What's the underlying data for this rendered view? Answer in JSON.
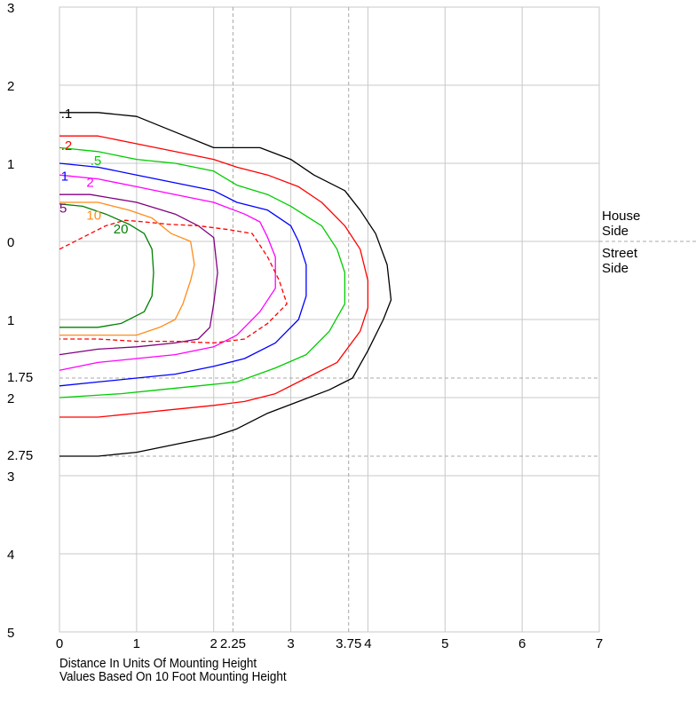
{
  "chart_data": {
    "type": "isofootcandle",
    "xlabel": "Distance In Units Of Mounting Height",
    "note": "Values Based On 10 Foot Mounting Height",
    "x_ticks": [
      "0",
      "1",
      "2",
      "3",
      "4",
      "5",
      "6",
      "7"
    ],
    "x_ref_ticks": [
      "2.25",
      "3.75"
    ],
    "x_ref_values": [
      2.25,
      3.75
    ],
    "y_ticks_upper": [
      "3",
      "2",
      "1",
      "0"
    ],
    "y_ticks_lower": [
      "1",
      "2",
      "3",
      "4",
      "5"
    ],
    "y_ref_ticks": [
      "1.75",
      "2.75"
    ],
    "y_ref_values": [
      -1.75,
      -2.75
    ],
    "xlim": [
      0,
      7
    ],
    "ylim": [
      -5,
      3
    ],
    "side_labels": {
      "house": "House",
      "house2": "Side",
      "street": "Street",
      "street2": "Side"
    },
    "grid": true,
    "contours": [
      {
        "label": ".1",
        "color": "#000000",
        "dashed": false,
        "label_at": [
          0.02,
          1.58
        ],
        "points": [
          [
            0,
            1.65
          ],
          [
            0.5,
            1.65
          ],
          [
            1,
            1.6
          ],
          [
            1.5,
            1.4
          ],
          [
            2,
            1.2
          ],
          [
            2.3,
            1.2
          ],
          [
            2.6,
            1.2
          ],
          [
            3,
            1.05
          ],
          [
            3.3,
            0.85
          ],
          [
            3.7,
            0.65
          ],
          [
            3.9,
            0.4
          ],
          [
            4.1,
            0.1
          ],
          [
            4.25,
            -0.3
          ],
          [
            4.3,
            -0.75
          ],
          [
            4.2,
            -1.0
          ],
          [
            4.0,
            -1.4
          ],
          [
            3.8,
            -1.75
          ],
          [
            3.5,
            -1.9
          ],
          [
            3.1,
            -2.05
          ],
          [
            2.7,
            -2.2
          ],
          [
            2.3,
            -2.4
          ],
          [
            2.0,
            -2.5
          ],
          [
            1.5,
            -2.6
          ],
          [
            1.0,
            -2.7
          ],
          [
            0.5,
            -2.75
          ],
          [
            0,
            -2.75
          ]
        ]
      },
      {
        "label": ".2",
        "color": "#ff0000",
        "dashed": false,
        "label_at": [
          0.02,
          1.17
        ],
        "points": [
          [
            0,
            1.35
          ],
          [
            0.5,
            1.35
          ],
          [
            1,
            1.25
          ],
          [
            1.5,
            1.15
          ],
          [
            2,
            1.05
          ],
          [
            2.3,
            0.95
          ],
          [
            2.7,
            0.85
          ],
          [
            3.1,
            0.7
          ],
          [
            3.4,
            0.5
          ],
          [
            3.7,
            0.2
          ],
          [
            3.9,
            -0.1
          ],
          [
            4.0,
            -0.5
          ],
          [
            4.0,
            -0.85
          ],
          [
            3.9,
            -1.15
          ],
          [
            3.6,
            -1.55
          ],
          [
            3.2,
            -1.75
          ],
          [
            2.8,
            -1.95
          ],
          [
            2.4,
            -2.05
          ],
          [
            2.0,
            -2.1
          ],
          [
            1.5,
            -2.15
          ],
          [
            1.0,
            -2.2
          ],
          [
            0.5,
            -2.25
          ],
          [
            0,
            -2.25
          ]
        ]
      },
      {
        "label": ".5",
        "color": "#00cc00",
        "dashed": false,
        "label_at": [
          0.4,
          0.98
        ],
        "points": [
          [
            0,
            1.2
          ],
          [
            0.5,
            1.15
          ],
          [
            1,
            1.05
          ],
          [
            1.5,
            1.0
          ],
          [
            2,
            0.9
          ],
          [
            2.3,
            0.72
          ],
          [
            2.7,
            0.6
          ],
          [
            3.0,
            0.45
          ],
          [
            3.4,
            0.2
          ],
          [
            3.6,
            -0.1
          ],
          [
            3.7,
            -0.4
          ],
          [
            3.7,
            -0.8
          ],
          [
            3.5,
            -1.15
          ],
          [
            3.2,
            -1.45
          ],
          [
            2.8,
            -1.62
          ],
          [
            2.3,
            -1.8
          ],
          [
            1.8,
            -1.85
          ],
          [
            1.3,
            -1.9
          ],
          [
            0.8,
            -1.95
          ],
          [
            0,
            -2.0
          ]
        ]
      },
      {
        "label": "1",
        "color": "#0000ff",
        "dashed": false,
        "label_at": [
          0.02,
          0.78
        ],
        "points": [
          [
            0,
            1.0
          ],
          [
            0.5,
            0.95
          ],
          [
            1,
            0.85
          ],
          [
            1.5,
            0.75
          ],
          [
            2,
            0.65
          ],
          [
            2.3,
            0.5
          ],
          [
            2.7,
            0.4
          ],
          [
            3.0,
            0.2
          ],
          [
            3.1,
            0.0
          ],
          [
            3.2,
            -0.3
          ],
          [
            3.2,
            -0.7
          ],
          [
            3.1,
            -1.0
          ],
          [
            2.8,
            -1.3
          ],
          [
            2.4,
            -1.5
          ],
          [
            2.0,
            -1.6
          ],
          [
            1.5,
            -1.7
          ],
          [
            1.0,
            -1.75
          ],
          [
            0.5,
            -1.8
          ],
          [
            0,
            -1.85
          ]
        ]
      },
      {
        "label": "2",
        "color": "#ff00ff",
        "dashed": false,
        "label_at": [
          0.35,
          0.7
        ],
        "points": [
          [
            0,
            0.85
          ],
          [
            0.5,
            0.8
          ],
          [
            1,
            0.7
          ],
          [
            1.5,
            0.6
          ],
          [
            2,
            0.5
          ],
          [
            2.4,
            0.35
          ],
          [
            2.6,
            0.25
          ],
          [
            2.7,
            0.05
          ],
          [
            2.8,
            -0.2
          ],
          [
            2.8,
            -0.6
          ],
          [
            2.6,
            -0.9
          ],
          [
            2.3,
            -1.2
          ],
          [
            2.0,
            -1.35
          ],
          [
            1.5,
            -1.45
          ],
          [
            1.0,
            -1.5
          ],
          [
            0.5,
            -1.55
          ],
          [
            0,
            -1.65
          ]
        ]
      },
      {
        "label": "5",
        "color": "#800080",
        "dashed": false,
        "label_at": [
          0.0,
          0.37
        ],
        "points": [
          [
            0,
            0.6
          ],
          [
            0.4,
            0.6
          ],
          [
            1,
            0.5
          ],
          [
            1.5,
            0.35
          ],
          [
            1.8,
            0.2
          ],
          [
            2.0,
            0.05
          ],
          [
            2.05,
            -0.4
          ],
          [
            2.0,
            -0.8
          ],
          [
            1.95,
            -1.1
          ],
          [
            1.8,
            -1.25
          ],
          [
            1.5,
            -1.3
          ],
          [
            1.0,
            -1.35
          ],
          [
            0.5,
            -1.38
          ],
          [
            0,
            -1.45
          ]
        ]
      },
      {
        "label": "10",
        "color": "#ff8c1a",
        "dashed": false,
        "label_at": [
          0.35,
          0.28
        ],
        "points": [
          [
            0,
            0.5
          ],
          [
            0.5,
            0.5
          ],
          [
            0.9,
            0.4
          ],
          [
            1.2,
            0.3
          ],
          [
            1.45,
            0.1
          ],
          [
            1.7,
            0.0
          ],
          [
            1.75,
            -0.3
          ],
          [
            1.7,
            -0.5
          ],
          [
            1.6,
            -0.8
          ],
          [
            1.5,
            -1.0
          ],
          [
            1.3,
            -1.1
          ],
          [
            1.0,
            -1.2
          ],
          [
            0.5,
            -1.2
          ],
          [
            0,
            -1.2
          ]
        ]
      },
      {
        "label": "20",
        "color": "#008000",
        "dashed": false,
        "label_at": [
          0.7,
          0.1
        ],
        "points": [
          [
            0,
            0.48
          ],
          [
            0.3,
            0.45
          ],
          [
            0.6,
            0.35
          ],
          [
            0.9,
            0.22
          ],
          [
            1.1,
            0.1
          ],
          [
            1.2,
            -0.1
          ],
          [
            1.22,
            -0.4
          ],
          [
            1.2,
            -0.7
          ],
          [
            1.1,
            -0.9
          ],
          [
            0.8,
            -1.05
          ],
          [
            0.5,
            -1.1
          ],
          [
            0,
            -1.1
          ]
        ]
      },
      {
        "label": "",
        "color": "#ff0000",
        "dashed": true,
        "label_at": null,
        "points": [
          [
            0,
            -0.1
          ],
          [
            0.3,
            0.05
          ],
          [
            0.6,
            0.2
          ],
          [
            0.85,
            0.27
          ],
          [
            1.1,
            0.25
          ],
          [
            1.4,
            0.22
          ],
          [
            1.8,
            0.2
          ],
          [
            2.2,
            0.15
          ],
          [
            2.5,
            0.1
          ],
          [
            2.7,
            -0.2
          ],
          [
            2.85,
            -0.5
          ],
          [
            2.95,
            -0.8
          ],
          [
            2.7,
            -1.05
          ],
          [
            2.4,
            -1.25
          ],
          [
            2.0,
            -1.3
          ],
          [
            1.5,
            -1.28
          ],
          [
            1.0,
            -1.28
          ],
          [
            0.5,
            -1.25
          ],
          [
            0,
            -1.25
          ]
        ]
      }
    ]
  }
}
